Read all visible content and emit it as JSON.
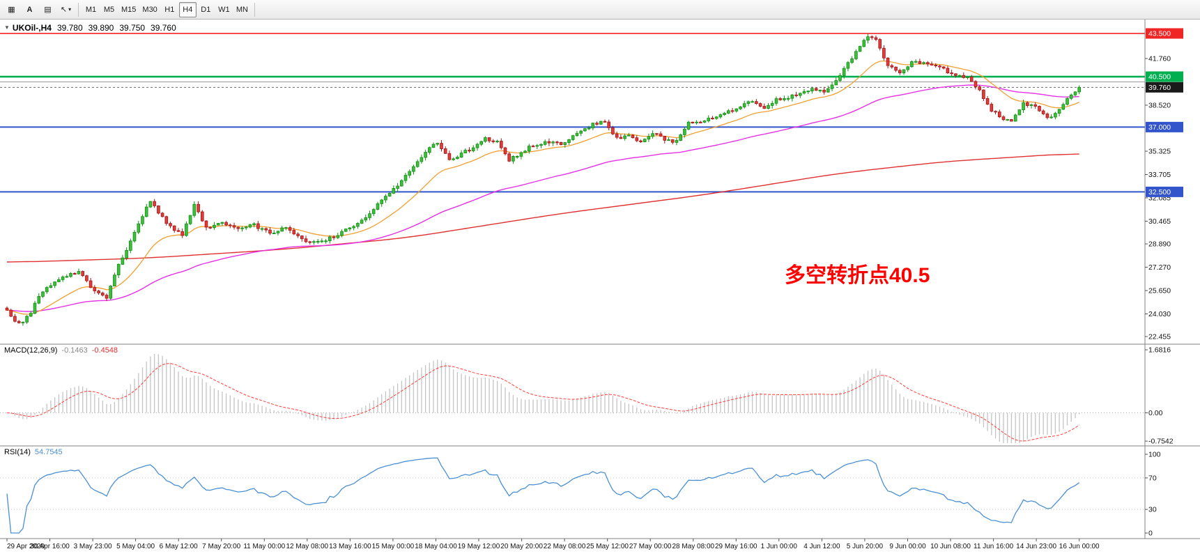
{
  "toolbar": {
    "left_icons": [
      {
        "name": "charts-grid-icon",
        "glyph": "▦"
      },
      {
        "name": "annotation-a-icon",
        "glyph": "A",
        "bold": true
      },
      {
        "name": "templates-icon",
        "glyph": "▤"
      },
      {
        "name": "cursor-icon",
        "glyph": "↖",
        "caret": true
      }
    ],
    "timeframes": [
      "M1",
      "M5",
      "M15",
      "M30",
      "H1",
      "H4",
      "D1",
      "W1",
      "MN"
    ],
    "active_timeframe": "H4"
  },
  "price_panel": {
    "title_symbol": "UKOil-,H4",
    "open": "39.780",
    "high": "39.890",
    "low": "39.750",
    "close": "39.760",
    "annotation_text": "多空转折点40.5",
    "annotation_color": "#ff0000"
  },
  "macd_panel": {
    "label": "MACD(12,26,9)",
    "main_value": "-0.1463",
    "signal_value": "-0.4548"
  },
  "rsi_panel": {
    "label": "RSI(14)",
    "value": "54.7545"
  },
  "chart_data": {
    "type": "candlestick",
    "symbol": "UKOil-",
    "timeframe": "H4",
    "bars": 270,
    "last_close": 39.76,
    "close_waypoints": [
      [
        0,
        24.2
      ],
      [
        3,
        23.3
      ],
      [
        6,
        24.1
      ],
      [
        8,
        25.3
      ],
      [
        12,
        26.3
      ],
      [
        16,
        26.8
      ],
      [
        18,
        26.9
      ],
      [
        22,
        25.6
      ],
      [
        25,
        25.2
      ],
      [
        28,
        27.5
      ],
      [
        31,
        29.0
      ],
      [
        34,
        30.8
      ],
      [
        36,
        31.9
      ],
      [
        40,
        30.3
      ],
      [
        44,
        29.5
      ],
      [
        47,
        31.6
      ],
      [
        50,
        30.0
      ],
      [
        54,
        30.4
      ],
      [
        58,
        29.9
      ],
      [
        62,
        30.2
      ],
      [
        66,
        29.6
      ],
      [
        70,
        30.1
      ],
      [
        74,
        29.2
      ],
      [
        78,
        29.0
      ],
      [
        82,
        29.4
      ],
      [
        86,
        30.0
      ],
      [
        90,
        30.8
      ],
      [
        94,
        31.9
      ],
      [
        97,
        32.7
      ],
      [
        100,
        33.6
      ],
      [
        103,
        34.6
      ],
      [
        106,
        35.5
      ],
      [
        108,
        35.9
      ],
      [
        111,
        34.8
      ],
      [
        113,
        35.0
      ],
      [
        117,
        35.6
      ],
      [
        120,
        36.2
      ],
      [
        123,
        36.0
      ],
      [
        126,
        34.7
      ],
      [
        131,
        35.6
      ],
      [
        135,
        36.0
      ],
      [
        139,
        35.8
      ],
      [
        143,
        36.5
      ],
      [
        147,
        37.2
      ],
      [
        150,
        37.4
      ],
      [
        153,
        36.2
      ],
      [
        156,
        36.5
      ],
      [
        159,
        35.9
      ],
      [
        162,
        36.6
      ],
      [
        165,
        36.1
      ],
      [
        168,
        36.0
      ],
      [
        171,
        37.3
      ],
      [
        175,
        37.4
      ],
      [
        178,
        37.8
      ],
      [
        181,
        38.1
      ],
      [
        184,
        38.4
      ],
      [
        187,
        38.8
      ],
      [
        190,
        38.4
      ],
      [
        193,
        38.9
      ],
      [
        196,
        39.1
      ],
      [
        199,
        39.3
      ],
      [
        202,
        39.6
      ],
      [
        205,
        39.5
      ],
      [
        208,
        40.3
      ],
      [
        210,
        41.0
      ],
      [
        213,
        42.2
      ],
      [
        216,
        43.3
      ],
      [
        218,
        43.0
      ],
      [
        221,
        41.3
      ],
      [
        224,
        40.7
      ],
      [
        227,
        41.5
      ],
      [
        230,
        41.4
      ],
      [
        235,
        41.0
      ],
      [
        238,
        40.6
      ],
      [
        241,
        40.5
      ],
      [
        244,
        39.5
      ],
      [
        247,
        38.2
      ],
      [
        250,
        37.6
      ],
      [
        252,
        37.4
      ],
      [
        255,
        38.7
      ],
      [
        258,
        38.4
      ],
      [
        261,
        37.6
      ],
      [
        263,
        37.9
      ],
      [
        266,
        38.9
      ],
      [
        269,
        39.76
      ]
    ],
    "wiggle": 0.22,
    "price_axis_ticks": [
      41.76,
      38.52,
      35.325,
      33.705,
      32.085,
      30.465,
      28.89,
      27.27,
      25.65,
      24.03,
      22.455
    ],
    "horizontal_lines": [
      {
        "price": 43.5,
        "label": "43.500",
        "color": "#f02525",
        "width": 1.6,
        "badge": "#f02525"
      },
      {
        "price": 40.5,
        "label": "40.500",
        "color": "#00b050",
        "width": 2.6,
        "badge": "#00b050"
      },
      {
        "price": 40.14,
        "color": "#a8a8a8",
        "width": 1.2
      },
      {
        "price": 39.76,
        "label": "39.760",
        "color": "#666666",
        "width": 1,
        "dash": "3 3",
        "badge": "#1a1a1a"
      },
      {
        "price": 37.0,
        "label": "37.000",
        "color": "#3355cc",
        "width": 2,
        "badge": "#3355cc"
      },
      {
        "price": 32.5,
        "label": "32.500",
        "color": "#3355cc",
        "width": 2,
        "badge": "#3355cc"
      }
    ],
    "moving_averages": {
      "fast": {
        "period": 18,
        "color": "#f0a030"
      },
      "slow": {
        "period": 70,
        "color": "#e530e5"
      },
      "long_color": "#e03030",
      "long_waypoints": [
        [
          0,
          27.6
        ],
        [
          35,
          27.9
        ],
        [
          69,
          28.5
        ],
        [
          100,
          29.3
        ],
        [
          139,
          31.0
        ],
        [
          175,
          32.3
        ],
        [
          209,
          33.8
        ],
        [
          235,
          34.6
        ],
        [
          269,
          35.2
        ]
      ]
    },
    "candle_colors": {
      "up_fill": "#3dbf3d",
      "up_edge": "#118f11",
      "down_fill": "#e23b3b",
      "down_edge": "#a31515"
    },
    "macd": {
      "fast": 12,
      "slow": 26,
      "signal": 9,
      "axis": [
        1.6816,
        0,
        -0.7542
      ],
      "hist_color": "#c4c4c4",
      "signal_color": "#ff3b3b"
    },
    "rsi": {
      "period": 14,
      "axis": [
        100,
        70,
        30,
        0
      ],
      "levels": [
        70,
        30
      ],
      "color": "#4a8fd4"
    },
    "time_labels": [
      "29 Apr 2020",
      "30 Apr 16:00",
      "3 May 23:00",
      "5 May 04:00",
      "6 May 12:00",
      "7 May 20:00",
      "11 May 00:00",
      "12 May 08:00",
      "13 May 16:00",
      "15 May 00:00",
      "18 May 04:00",
      "19 May 12:00",
      "20 May 20:00",
      "22 May 08:00",
      "25 May 12:00",
      "27 May 00:00",
      "28 May 08:00",
      "29 May 16:00",
      "1 Jun 00:00",
      "4 Jun 12:00",
      "5 Jun 20:00",
      "9 Jun 00:00",
      "10 Jun 08:00",
      "11 Jun 16:00",
      "14 Jun 23:00",
      "16 Jun 00:00"
    ]
  }
}
